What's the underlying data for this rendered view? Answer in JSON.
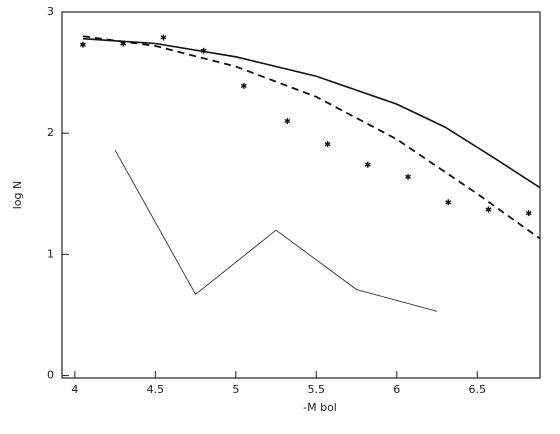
{
  "chart_data": {
    "type": "line",
    "xlabel": "-M bol",
    "ylabel": "log N",
    "xlim": [
      3.92,
      6.89
    ],
    "ylim": [
      -0.02,
      3
    ],
    "xticks": [
      4,
      4.5,
      5,
      5.5,
      6,
      6.5
    ],
    "yticks": [
      0,
      1,
      2,
      3
    ],
    "series": [
      {
        "color": "#111111",
        "style": "solid",
        "width": 1.6,
        "x": [
          4.05,
          4.5,
          5,
          5.5,
          6,
          6.3,
          6.6,
          6.89
        ],
        "values": [
          2.78,
          2.74,
          2.63,
          2.47,
          2.24,
          2.05,
          1.8,
          1.55
        ]
      },
      {
        "color": "#111111",
        "style": "dashed",
        "width": 1.8,
        "x": [
          4.05,
          4.5,
          5,
          5.5,
          6,
          6.5,
          6.89
        ],
        "values": [
          2.8,
          2.72,
          2.55,
          2.3,
          1.95,
          1.5,
          1.13
        ]
      },
      {
        "color": "#111111",
        "style": "none",
        "marker": "star",
        "x": [
          4.05,
          4.3,
          4.55,
          4.8,
          5.05,
          5.32,
          5.57,
          5.82,
          6.07,
          6.32,
          6.57,
          6.82
        ],
        "values": [
          2.73,
          2.74,
          2.79,
          2.68,
          2.39,
          2.1,
          1.91,
          1.74,
          1.64,
          1.43,
          1.37,
          1.34
        ]
      },
      {
        "color": "#333333",
        "style": "solid",
        "width": 0.9,
        "x": [
          4.25,
          4.75,
          5.25,
          5.75,
          6.25
        ],
        "values": [
          1.86,
          0.67,
          1.2,
          0.71,
          0.53
        ]
      }
    ]
  }
}
